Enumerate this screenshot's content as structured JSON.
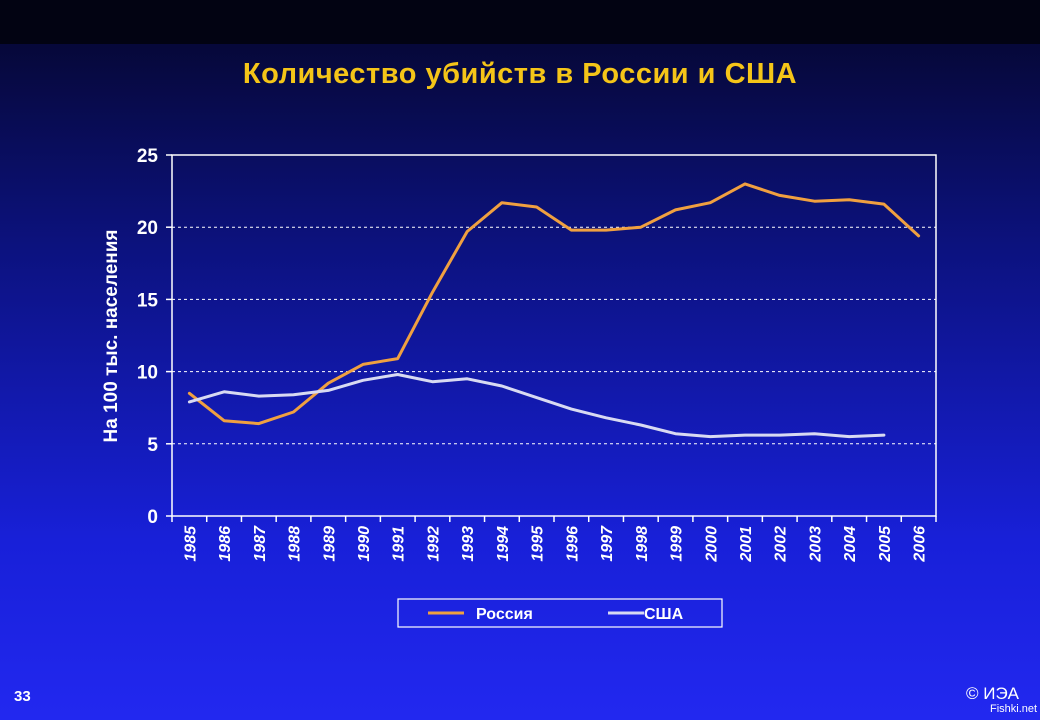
{
  "slide": {
    "number": "33",
    "copyright": "© ИЭА",
    "watermark": "Fishki.net"
  },
  "colors": {
    "title": "#f5c518",
    "russia": "#f0a040",
    "usa": "#d8daf2",
    "axes": "#ffffff",
    "grid": "#ffffff"
  },
  "chart_data": {
    "type": "line",
    "title": "Количество убийств в России и США",
    "xlabel": "",
    "ylabel": "На 100 тыс. населения",
    "x": [
      "1985",
      "1986",
      "1987",
      "1988",
      "1989",
      "1990",
      "1991",
      "1992",
      "1993",
      "1994",
      "1995",
      "1996",
      "1997",
      "1998",
      "1999",
      "2000",
      "2001",
      "2002",
      "2003",
      "2004",
      "2005",
      "2006"
    ],
    "ylim": [
      0,
      25
    ],
    "yticks": [
      0,
      5,
      10,
      15,
      20,
      25
    ],
    "grid": "horizontal dashed",
    "legend_position": "bottom",
    "series": [
      {
        "name": "Россия",
        "color": "#f0a040",
        "values": [
          8.5,
          6.6,
          6.4,
          7.2,
          9.2,
          10.5,
          10.9,
          15.5,
          19.7,
          21.7,
          21.4,
          19.8,
          19.8,
          20.0,
          21.2,
          21.7,
          23.0,
          22.2,
          21.8,
          21.9,
          21.6,
          19.4
        ]
      },
      {
        "name": "США",
        "color": "#d8daf2",
        "values": [
          7.9,
          8.6,
          8.3,
          8.4,
          8.7,
          9.4,
          9.8,
          9.3,
          9.5,
          9.0,
          8.2,
          7.4,
          6.8,
          6.3,
          5.7,
          5.5,
          5.6,
          5.6,
          5.7,
          5.5,
          5.6,
          null
        ]
      }
    ]
  }
}
